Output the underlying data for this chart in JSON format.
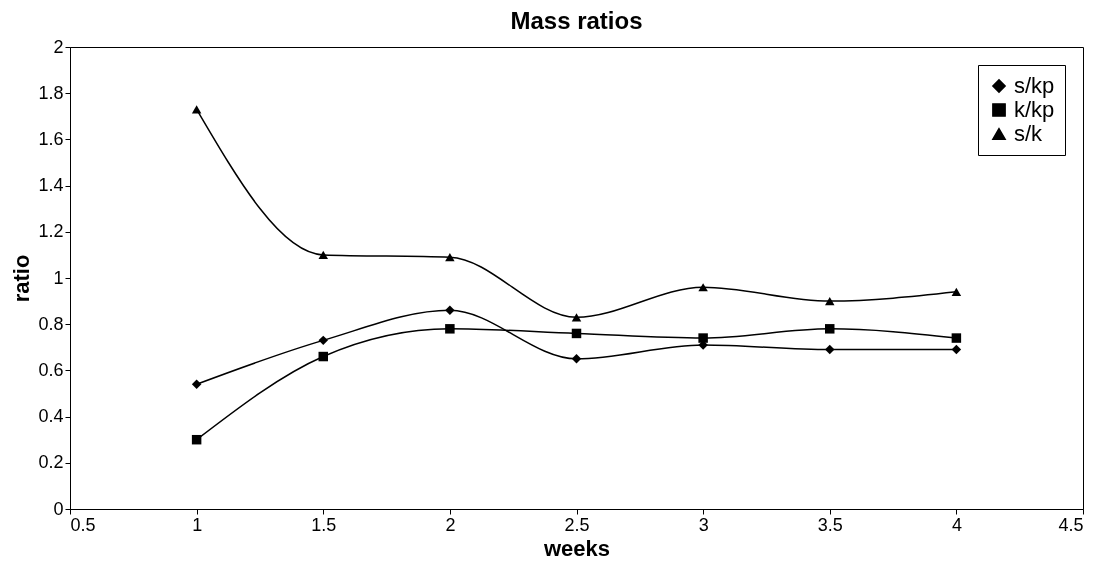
{
  "chart_data": {
    "type": "line",
    "title": "Mass ratios",
    "xlabel": "weeks",
    "ylabel": "ratio",
    "x": [
      1,
      1.5,
      2,
      2.5,
      3,
      3.5,
      4
    ],
    "xlim": [
      0.5,
      4.5
    ],
    "xticks": [
      0.5,
      1,
      1.5,
      2,
      2.5,
      3,
      3.5,
      4,
      4.5
    ],
    "ylim": [
      0,
      2
    ],
    "yticks": [
      0,
      0.2,
      0.4,
      0.6,
      0.8,
      1,
      1.2,
      1.4,
      1.6,
      1.8,
      2
    ],
    "grid": false,
    "legend": "top right",
    "line_style": "solid",
    "series": [
      {
        "name": "s/kp",
        "color": "#000000",
        "marker": "diamond",
        "values": [
          0.54,
          0.73,
          0.86,
          0.65,
          0.71,
          0.69,
          0.69
        ]
      },
      {
        "name": "k/kp",
        "color": "#000000",
        "marker": "square",
        "values": [
          0.3,
          0.66,
          0.78,
          0.76,
          0.74,
          0.78,
          0.74
        ]
      },
      {
        "name": "s/k",
        "color": "#000000",
        "marker": "triangle",
        "values": [
          1.73,
          1.1,
          1.09,
          0.83,
          0.96,
          0.9,
          0.94
        ]
      }
    ]
  }
}
